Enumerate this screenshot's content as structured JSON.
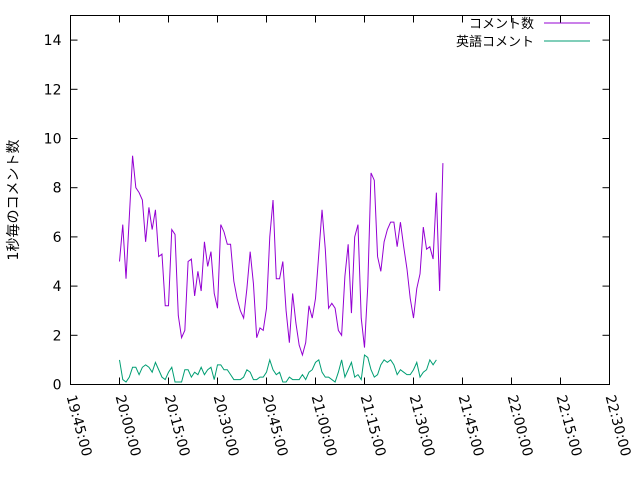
{
  "chart_data": {
    "type": "line",
    "ylabel": "1秒毎のコメント数",
    "xlabel": "",
    "title": "",
    "xlim": [
      "19:45:00",
      "22:30:00"
    ],
    "ylim": [
      0,
      15
    ],
    "x_ticks": [
      "19:45:00",
      "20:00:00",
      "20:15:00",
      "20:30:00",
      "20:45:00",
      "21:00:00",
      "21:15:00",
      "21:30:00",
      "21:45:00",
      "22:00:00",
      "22:15:00",
      "22:30:00"
    ],
    "y_ticks": [
      "0",
      "2",
      "4",
      "6",
      "8",
      "10",
      "12",
      "14"
    ],
    "grid": false,
    "legend_position": "top-right",
    "x_interval_seconds": 60,
    "series": [
      {
        "name": "コメント数",
        "color": "#9400d3",
        "start": "20:00:00",
        "values": [
          5.0,
          6.5,
          4.3,
          6.8,
          9.3,
          8.0,
          7.8,
          7.5,
          5.8,
          7.2,
          6.3,
          7.1,
          5.2,
          5.3,
          3.2,
          3.2,
          6.3,
          6.1,
          2.8,
          1.9,
          2.2,
          5.0,
          5.1,
          3.6,
          4.6,
          3.8,
          5.8,
          4.8,
          5.4,
          3.7,
          3.1,
          6.5,
          6.2,
          5.7,
          5.7,
          4.2,
          3.5,
          3.0,
          2.7,
          3.9,
          5.4,
          4.1,
          1.9,
          2.3,
          2.2,
          3.1,
          6.0,
          7.5,
          4.3,
          4.3,
          5.0,
          3.0,
          1.7,
          3.7,
          2.5,
          1.6,
          1.2,
          1.7,
          3.2,
          2.7,
          3.5,
          5.3,
          7.1,
          5.5,
          3.1,
          3.3,
          3.1,
          2.2,
          2.0,
          4.4,
          5.7,
          2.9,
          6.0,
          6.5,
          2.7,
          1.5,
          4.0,
          8.6,
          8.3,
          5.2,
          4.6,
          5.8,
          6.3,
          6.6,
          6.6,
          5.6,
          6.6,
          5.6,
          4.7,
          3.5,
          2.7,
          3.9,
          4.5,
          6.4,
          5.5,
          5.6,
          5.1,
          7.8,
          3.8,
          9.0
        ]
      },
      {
        "name": "英語コメント",
        "color": "#009e73",
        "start": "20:00:00",
        "values": [
          1.0,
          0.2,
          0.1,
          0.3,
          0.7,
          0.7,
          0.4,
          0.7,
          0.8,
          0.7,
          0.5,
          0.9,
          0.6,
          0.3,
          0.2,
          0.5,
          0.7,
          0.1,
          0.1,
          0.1,
          0.6,
          0.6,
          0.3,
          0.5,
          0.4,
          0.7,
          0.4,
          0.6,
          0.7,
          0.2,
          0.8,
          0.8,
          0.6,
          0.6,
          0.4,
          0.2,
          0.2,
          0.2,
          0.3,
          0.6,
          0.5,
          0.2,
          0.2,
          0.3,
          0.3,
          0.5,
          1.0,
          0.6,
          0.4,
          0.5,
          0.1,
          0.1,
          0.3,
          0.2,
          0.2,
          0.2,
          0.4,
          0.2,
          0.5,
          0.6,
          0.9,
          1.0,
          0.5,
          0.3,
          0.3,
          0.2,
          0.1,
          0.5,
          1.0,
          0.3,
          0.6,
          0.9,
          0.3,
          0.4,
          0.2,
          1.2,
          1.1,
          0.6,
          0.3,
          0.4,
          0.8,
          1.0,
          0.9,
          1.0,
          0.8,
          0.4,
          0.6,
          0.5,
          0.4,
          0.4,
          0.6,
          0.9,
          0.3,
          0.5,
          0.6,
          1.0,
          0.8,
          1.0
        ]
      }
    ]
  }
}
